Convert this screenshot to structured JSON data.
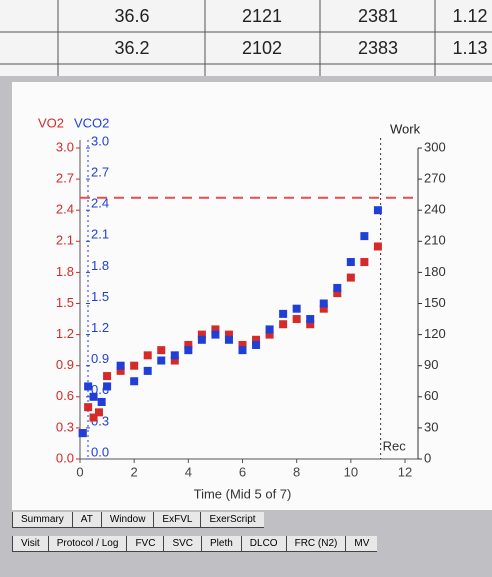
{
  "table": {
    "rows": [
      [
        "36.6",
        "2121",
        "2381",
        "1.12"
      ],
      [
        "36.2",
        "2102",
        "2383",
        "1.13"
      ]
    ]
  },
  "chart_data": {
    "type": "scatter",
    "series": [
      {
        "name": "VO2",
        "color": "#d42a2a",
        "x": [
          0.1,
          0.3,
          0.5,
          0.7,
          1,
          1.5,
          2,
          2.5,
          3,
          3.5,
          4,
          4.5,
          5,
          5.5,
          6,
          6.5,
          7,
          7.5,
          8,
          8.5,
          9,
          9.5,
          10,
          10.5,
          11
        ],
        "values": [
          0.25,
          0.5,
          0.4,
          0.45,
          0.8,
          0.85,
          0.9,
          1.0,
          1.05,
          0.95,
          1.1,
          1.2,
          1.25,
          1.2,
          1.1,
          1.15,
          1.2,
          1.3,
          1.35,
          1.3,
          1.45,
          1.6,
          1.75,
          1.9,
          2.05
        ]
      },
      {
        "name": "VCO2",
        "color": "#1f3fd6",
        "axis": "y2",
        "x": [
          0.1,
          0.3,
          0.5,
          0.8,
          1,
          1.5,
          2,
          2.5,
          3,
          3.5,
          4,
          4.5,
          5,
          5.5,
          6,
          6.5,
          7,
          7.5,
          8,
          8.5,
          9,
          9.5,
          10,
          10.5,
          11
        ],
        "values": [
          0.25,
          0.7,
          0.6,
          0.55,
          0.7,
          0.9,
          0.75,
          0.85,
          0.95,
          1.0,
          1.05,
          1.15,
          1.2,
          1.15,
          1.05,
          1.1,
          1.25,
          1.4,
          1.45,
          1.35,
          1.5,
          1.65,
          1.9,
          2.15,
          2.4
        ]
      }
    ],
    "xlabel": "Time (Mid 5 of 7)",
    "xlim": [
      0,
      12
    ],
    "xticks": [
      0,
      2,
      4,
      6,
      8,
      10,
      12
    ],
    "ylim": [
      0,
      3
    ],
    "yticks": [
      {
        "value": 0,
        "label": "0.0"
      },
      0.3,
      0.6,
      0.9,
      1.2,
      1.5,
      1.8,
      2.1,
      2.4,
      2.7,
      {
        "value": 3,
        "label": "3.0"
      }
    ],
    "y2lim": [
      0,
      3
    ],
    "y2ticks": [
      {
        "value": 0,
        "label": "0.0"
      },
      0.3,
      0.6,
      0.9,
      1.2,
      1.5,
      1.8,
      2.1,
      2.4,
      2.7,
      {
        "value": 3,
        "label": "3.0"
      }
    ],
    "y3label": "Work",
    "y3lim": [
      0,
      300
    ],
    "y3ticks": [
      0,
      30,
      60,
      90,
      120,
      150,
      180,
      210,
      240,
      270,
      300
    ],
    "hline": {
      "y": 2.52,
      "color": "#e05050"
    },
    "annotation": {
      "text": "Rec",
      "x": 11.1
    }
  },
  "tabs": {
    "row1": [
      "Summary",
      "AT",
      "Window",
      "ExFVL",
      "ExerScript"
    ],
    "row2": [
      "Visit",
      "Protocol / Log",
      "FVC",
      "SVC",
      "Pleth",
      "DLCO",
      "FRC (N2)",
      "MV"
    ]
  }
}
